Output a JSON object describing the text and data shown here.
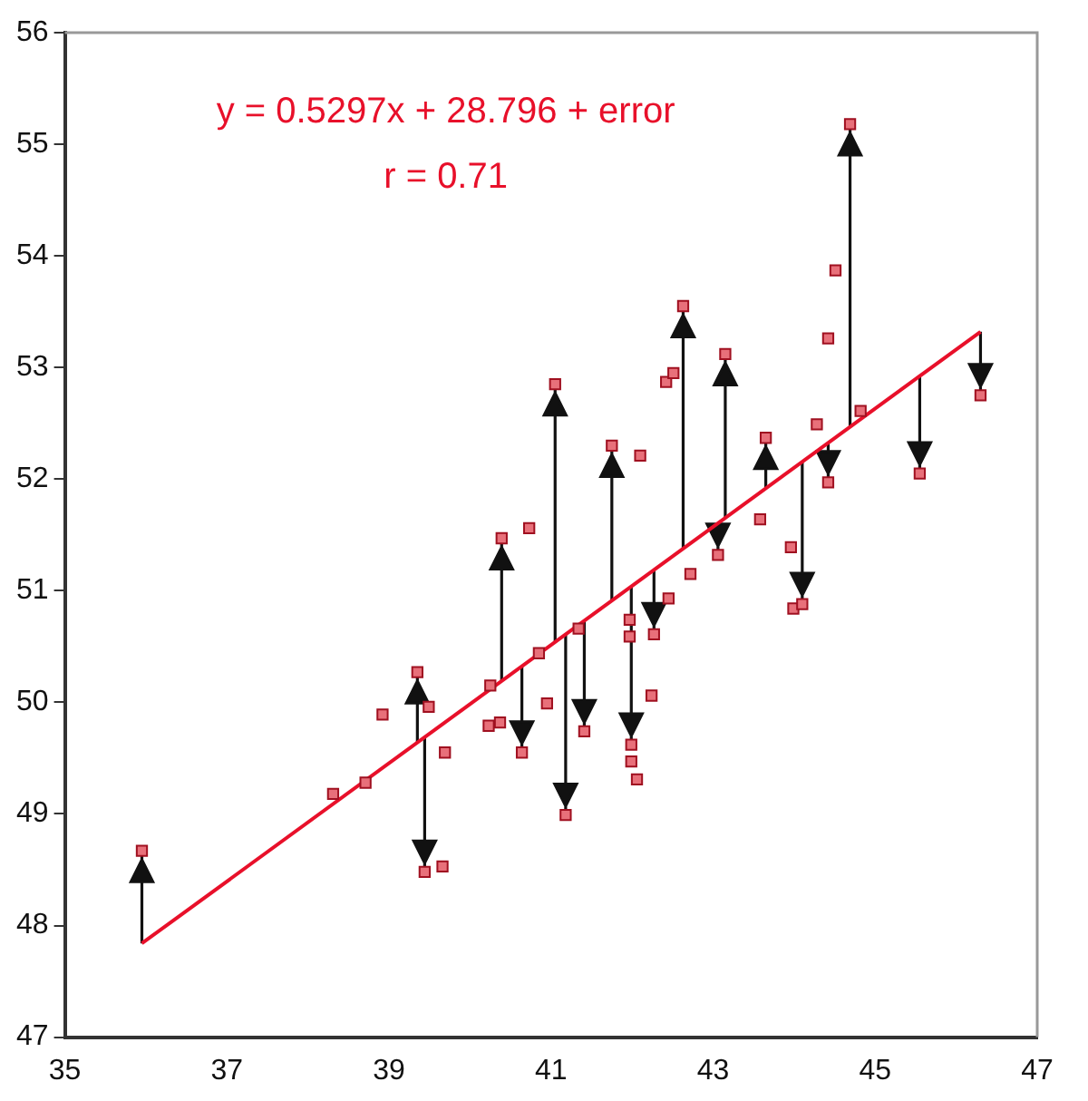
{
  "chart_data": {
    "type": "scatter",
    "annotations": [
      "y = 0.5297x + 28.796 + error",
      "r = 0.71"
    ],
    "xlim": [
      35,
      47
    ],
    "xticks": [
      35,
      37,
      39,
      41,
      43,
      45,
      47
    ],
    "ylim": [
      47,
      56
    ],
    "yticks": [
      47,
      48,
      49,
      50,
      51,
      52,
      53,
      54,
      55,
      56
    ],
    "grid": false,
    "legend": false,
    "marker": "square",
    "series": [
      {
        "color": "#e8707a",
        "x": [
          35.95,
          38.31,
          38.71,
          38.92,
          39.35,
          39.49,
          39.44,
          39.66,
          39.69,
          40.25,
          40.23,
          40.37,
          40.39,
          40.73,
          40.64,
          40.85,
          40.95,
          41.05,
          41.18,
          41.34,
          41.41,
          41.75,
          41.97,
          41.97,
          41.99,
          41.99,
          42.06,
          42.1,
          42.24,
          42.27,
          42.45,
          42.42,
          42.51,
          42.63,
          42.72,
          43.06,
          43.15,
          43.58,
          43.65,
          43.96,
          43.99,
          44.1,
          44.28,
          44.42,
          44.42,
          44.51,
          44.69,
          44.82,
          45.55,
          46.3
        ],
        "values": [
          48.67,
          49.18,
          49.28,
          49.89,
          50.27,
          49.96,
          48.48,
          48.53,
          49.55,
          50.15,
          49.79,
          49.82,
          51.47,
          51.56,
          49.55,
          50.44,
          49.99,
          52.85,
          48.99,
          50.66,
          49.74,
          52.3,
          50.74,
          50.59,
          49.62,
          49.47,
          49.31,
          52.21,
          50.06,
          50.61,
          50.93,
          52.87,
          52.95,
          53.55,
          51.15,
          51.32,
          53.12,
          51.64,
          52.37,
          51.39,
          50.84,
          50.88,
          52.49,
          51.97,
          53.26,
          53.87,
          55.18,
          52.61,
          52.05,
          52.75
        ],
        "errors": [
          [
            47.84,
            48.67
          ],
          null,
          null,
          null,
          [
            49.64,
            50.27
          ],
          null,
          [
            48.48,
            49.69
          ],
          null,
          null,
          null,
          null,
          null,
          [
            50.19,
            51.47
          ],
          null,
          [
            49.55,
            50.32
          ],
          null,
          null,
          [
            50.54,
            52.85
          ],
          [
            48.99,
            50.61
          ],
          null,
          [
            49.74,
            50.73
          ],
          [
            50.91,
            52.3
          ],
          null,
          null,
          [
            49.62,
            51.04
          ],
          null,
          null,
          null,
          null,
          [
            50.61,
            51.19
          ],
          null,
          null,
          null,
          [
            51.38,
            53.55
          ],
          null,
          [
            51.32,
            51.61
          ],
          [
            51.65,
            53.12
          ],
          null,
          [
            51.92,
            52.37
          ],
          null,
          null,
          [
            50.88,
            52.16
          ],
          null,
          [
            51.97,
            52.33
          ],
          null,
          null,
          [
            52.47,
            55.18
          ],
          null,
          [
            52.05,
            52.92
          ],
          [
            52.75,
            53.32
          ]
        ]
      },
      {
        "type": "line",
        "marker": "none",
        "color": "#e8102a",
        "x": [
          35.95,
          46.3
        ],
        "values": [
          47.84,
          53.32
        ]
      }
    ]
  }
}
